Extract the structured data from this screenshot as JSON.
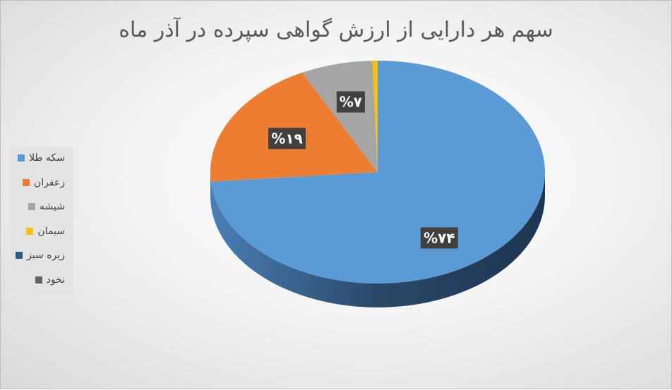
{
  "chart_data": {
    "type": "pie",
    "title": "سهم هر دارایی از ارزش گواهی سپرده در آذر ماه",
    "categories": [
      "سکه طلا",
      "زعفران",
      "شیشه",
      "سیمان",
      "زیره سبز",
      "نخود"
    ],
    "values": [
      74,
      19,
      7,
      0.5,
      0,
      0
    ],
    "data_labels": [
      "%۷۴",
      "%۱۹",
      "%۷",
      "",
      "",
      ""
    ],
    "colors": [
      "#5b9bd5",
      "#ed7d31",
      "#a5a5a5",
      "#ffc000",
      "#255e91",
      "#636363"
    ],
    "legend_position": "left",
    "style": "3d"
  }
}
